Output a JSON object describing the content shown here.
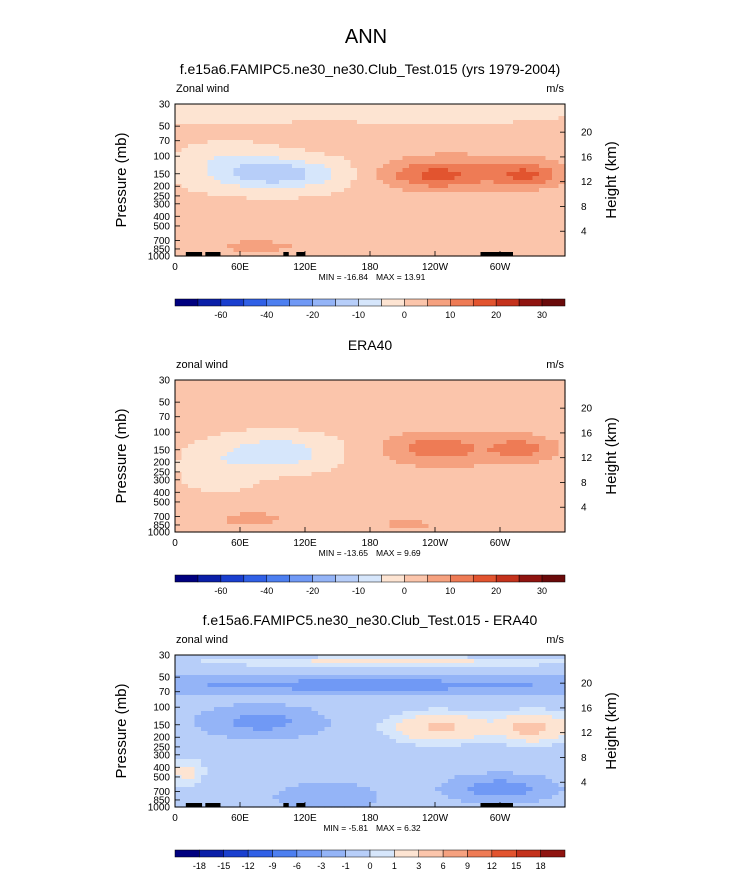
{
  "figure": {
    "title": "ANN"
  },
  "levels": {
    "full": [
      -70,
      -60,
      -50,
      -40,
      -30,
      -20,
      -15,
      -10,
      -5,
      0,
      5,
      10,
      15,
      20,
      25,
      30
    ],
    "diff": [
      -18,
      -15,
      -12,
      -9,
      -6,
      -3,
      -1,
      0,
      1,
      3,
      6,
      9,
      12,
      15,
      18
    ]
  },
  "colorbar_labels": {
    "full": [
      "-60",
      "-40",
      "-20",
      "-10",
      "0",
      "10",
      "20",
      "30"
    ],
    "diff": [
      "-18",
      "-15",
      "-12",
      "-9",
      "-6",
      "-3",
      "-1",
      "0",
      "1",
      "3",
      "6",
      "9",
      "12",
      "15",
      "18"
    ]
  },
  "palette": [
    "#00007f",
    "#0a1fa8",
    "#1a3fcf",
    "#3060e6",
    "#4d7ff0",
    "#7099f5",
    "#94b4f7",
    "#b7cef9",
    "#d6e6fb",
    "#fde4d2",
    "#fbc5ab",
    "#f5a17f",
    "#ee7b55",
    "#e2542f",
    "#c4321c",
    "#8f1410",
    "#6a0a0a"
  ],
  "chart_data": [
    {
      "type": "heatmap",
      "title": "f.e15a6.FAMIPC5.ne30_ne30.Club_Test.015 (yrs 1979-2004)",
      "left_label": "Zonal wind",
      "units": "m/s",
      "ylabel": "Pressure (mb)",
      "ylabel_right": "Height (km)",
      "x_ticks": [
        "0",
        "60E",
        "120E",
        "180",
        "120W",
        "60W"
      ],
      "x_tick_values": [
        0,
        60,
        120,
        180,
        240,
        300
      ],
      "y_ticks": [
        "30",
        "50",
        "70",
        "100",
        "150",
        "200",
        "250",
        "300",
        "400",
        "500",
        "700",
        "850",
        "1000"
      ],
      "y_tick_values": [
        30,
        50,
        70,
        100,
        150,
        200,
        250,
        300,
        400,
        500,
        700,
        850,
        1000
      ],
      "height_ticks": [
        "4",
        "8",
        "12",
        "16",
        "20"
      ],
      "height_tick_values": [
        4,
        8,
        12,
        16,
        20
      ],
      "xlim": [
        0,
        360
      ],
      "ylim_mb": [
        1000,
        30
      ],
      "min_label": "MIN = -16.84",
      "max_label": "MAX = 13.91",
      "min": -16.84,
      "max": 13.91,
      "levels": "full",
      "colorbar": "full",
      "base": 1,
      "blobs": [
        {
          "lon": 90,
          "p": 150,
          "wlon": 60,
          "wp": 0.35,
          "amp": -15
        },
        {
          "lon": 50,
          "p": 100,
          "wlon": 40,
          "wp": 0.3,
          "amp": -4
        },
        {
          "lon": 240,
          "p": 155,
          "wlon": 48,
          "wp": 0.34,
          "amp": 12.5
        },
        {
          "lon": 325,
          "p": 155,
          "wlon": 32,
          "wp": 0.3,
          "amp": 12
        },
        {
          "lon": 280,
          "p": 130,
          "wlon": 95,
          "wp": 0.55,
          "amp": 4
        },
        {
          "lon": 75,
          "p": 800,
          "wlon": 55,
          "wp": 0.25,
          "amp": 5
        },
        {
          "lon": 160,
          "p": 900,
          "wlon": 40,
          "wp": 0.2,
          "amp": 3
        },
        {
          "lon": 20,
          "p": 35,
          "wlon": 100,
          "wp": 0.3,
          "amp": -3
        },
        {
          "lon": 250,
          "p": 35,
          "wlon": 120,
          "wp": 0.3,
          "amp": -3
        }
      ],
      "terrain": [
        [
          10,
          25
        ],
        [
          28,
          42
        ],
        [
          100,
          105
        ],
        [
          112,
          120
        ],
        [
          282,
          312
        ]
      ]
    },
    {
      "type": "heatmap",
      "title": "ERA40",
      "left_label": "zonal wind",
      "units": "m/s",
      "ylabel": "Pressure (mb)",
      "ylabel_right": "Height (km)",
      "x_ticks": [
        "0",
        "60E",
        "120E",
        "180",
        "120W",
        "60W"
      ],
      "x_tick_values": [
        0,
        60,
        120,
        180,
        240,
        300
      ],
      "y_ticks": [
        "30",
        "50",
        "70",
        "100",
        "150",
        "200",
        "250",
        "300",
        "400",
        "500",
        "700",
        "850",
        "1000"
      ],
      "y_tick_values": [
        30,
        50,
        70,
        100,
        150,
        200,
        250,
        300,
        400,
        500,
        700,
        850,
        1000
      ],
      "height_ticks": [
        "4",
        "8",
        "12",
        "16",
        "20"
      ],
      "height_tick_values": [
        4,
        8,
        12,
        16,
        20
      ],
      "xlim": [
        0,
        360
      ],
      "ylim_mb": [
        1000,
        30
      ],
      "min_label": "MIN = -13.65",
      "max_label": "MAX = 9.69",
      "min": -13.65,
      "max": 9.69,
      "levels": "full",
      "colorbar": "full",
      "base": 1.5,
      "blobs": [
        {
          "lon": 95,
          "p": 160,
          "wlon": 55,
          "wp": 0.4,
          "amp": -10
        },
        {
          "lon": 40,
          "p": 250,
          "wlon": 35,
          "wp": 0.5,
          "amp": -4
        },
        {
          "lon": 240,
          "p": 145,
          "wlon": 45,
          "wp": 0.34,
          "amp": 9
        },
        {
          "lon": 320,
          "p": 145,
          "wlon": 30,
          "wp": 0.3,
          "amp": 8.5
        },
        {
          "lon": 270,
          "p": 160,
          "wlon": 95,
          "wp": 0.55,
          "amp": 3
        },
        {
          "lon": 70,
          "p": 750,
          "wlon": 40,
          "wp": 0.25,
          "amp": 5
        },
        {
          "lon": 215,
          "p": 850,
          "wlon": 40,
          "wp": 0.2,
          "amp": 4.5
        },
        {
          "lon": 320,
          "p": 800,
          "wlon": 40,
          "wp": 0.2,
          "amp": 3.5
        }
      ],
      "terrain": []
    },
    {
      "type": "heatmap",
      "title": "f.e15a6.FAMIPC5.ne30_ne30.Club_Test.015 - ERA40",
      "left_label": "zonal wind",
      "units": "m/s",
      "ylabel": "Pressure (mb)",
      "ylabel_right": "Height (km)",
      "x_ticks": [
        "0",
        "60E",
        "120E",
        "180",
        "120W",
        "60W"
      ],
      "x_tick_values": [
        0,
        60,
        120,
        180,
        240,
        300
      ],
      "y_ticks": [
        "30",
        "50",
        "70",
        "100",
        "150",
        "200",
        "250",
        "300",
        "400",
        "500",
        "700",
        "850",
        "1000"
      ],
      "y_tick_values": [
        30,
        50,
        70,
        100,
        150,
        200,
        250,
        300,
        400,
        500,
        700,
        850,
        1000
      ],
      "height_ticks": [
        "4",
        "8",
        "12",
        "16",
        "20"
      ],
      "height_tick_values": [
        4,
        8,
        12,
        16,
        20
      ],
      "xlim": [
        0,
        360
      ],
      "ylim_mb": [
        1000,
        30
      ],
      "min_label": "MIN = -5.81",
      "max_label": "MAX = 6.32",
      "min": -5.81,
      "max": 6.32,
      "levels": "diff",
      "colorbar": "diff",
      "base": -0.5,
      "blobs": [
        {
          "lon": 180,
          "p": 60,
          "wlon": 260,
          "wp": 0.18,
          "amp": -3.5
        },
        {
          "lon": 80,
          "p": 140,
          "wlon": 45,
          "wp": 0.3,
          "amp": -3.5
        },
        {
          "lon": 245,
          "p": 160,
          "wlon": 40,
          "wp": 0.3,
          "amp": 4
        },
        {
          "lon": 330,
          "p": 160,
          "wlon": 30,
          "wp": 0.3,
          "amp": 4.5
        },
        {
          "lon": 10,
          "p": 450,
          "wlon": 15,
          "wp": 0.3,
          "amp": 2
        },
        {
          "lon": 300,
          "p": 650,
          "wlon": 40,
          "wp": 0.25,
          "amp": -4
        },
        {
          "lon": 140,
          "p": 800,
          "wlon": 40,
          "wp": 0.3,
          "amp": -2
        },
        {
          "lon": 200,
          "p": 35,
          "wlon": 150,
          "wp": 0.1,
          "amp": 2
        }
      ],
      "terrain": [
        [
          10,
          25
        ],
        [
          28,
          42
        ],
        [
          100,
          105
        ],
        [
          112,
          120
        ],
        [
          282,
          312
        ]
      ]
    }
  ]
}
